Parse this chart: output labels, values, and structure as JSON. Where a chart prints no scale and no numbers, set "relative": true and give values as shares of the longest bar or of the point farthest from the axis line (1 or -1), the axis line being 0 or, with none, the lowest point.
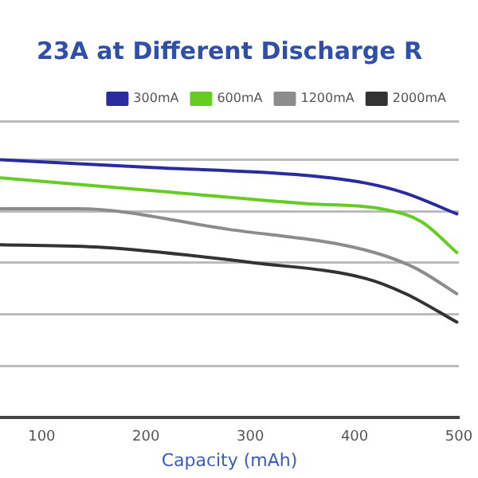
{
  "chart_data": {
    "type": "line",
    "title": "23A at Different Discharge R",
    "xlabel": "Capacity (mAh)",
    "relative": true,
    "xlim": [
      60,
      500
    ],
    "xticks": [
      100,
      200,
      300,
      400,
      500
    ],
    "grid": "y",
    "legend": "top right",
    "marker": "none",
    "line_style": "solid",
    "series": [
      {
        "name": "300mA",
        "color": "#2b2ba0",
        "x": [
          61,
          206,
          352,
          410,
          449,
          498
        ],
        "values": [
          1,
          0.97,
          0.94,
          0.91,
          0.87,
          0.79
        ]
      },
      {
        "name": "600mA",
        "color": "#66cc22",
        "x": [
          61,
          206,
          352,
          425,
          464,
          498
        ],
        "values": [
          0.93,
          0.88,
          0.83,
          0.81,
          0.76,
          0.64
        ]
      },
      {
        "name": "1200mA",
        "color": "#8c8c8c",
        "x": [
          61,
          134,
          279,
          410,
          458,
          498
        ],
        "values": [
          0.81,
          0.81,
          0.73,
          0.65,
          0.58,
          0.48
        ]
      },
      {
        "name": "2000mA",
        "color": "#333333",
        "x": [
          61,
          158,
          304,
          410,
          449,
          498
        ],
        "values": [
          0.67,
          0.66,
          0.6,
          0.54,
          0.48,
          0.37
        ]
      }
    ]
  }
}
